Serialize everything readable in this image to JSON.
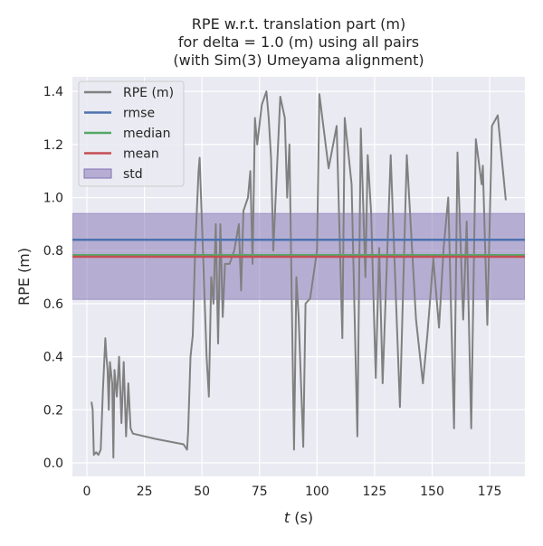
{
  "chart_data": {
    "type": "line",
    "title": [
      "RPE w.r.t. translation part (m)",
      "for delta = 1.0 (m) using all pairs",
      "(with Sim(3) Umeyama alignment)"
    ],
    "xlabel_var": "t",
    "xlabel_unit": " (s)",
    "ylabel": "RPE (m)",
    "xlim": [
      -6.3,
      190.3
    ],
    "ylim": [
      -0.051,
      1.455
    ],
    "xticks": [
      0,
      25,
      50,
      75,
      100,
      125,
      150,
      175
    ],
    "yticks": [
      0.0,
      0.2,
      0.4,
      0.6,
      0.8,
      1.0,
      1.2,
      1.4
    ],
    "grid": true,
    "legend_position": "top-left",
    "legend": [
      "RPE (m)",
      "rmse",
      "median",
      "mean",
      "std"
    ],
    "colors": {
      "rpe": "#808080",
      "rmse": "#4c72b0",
      "median": "#55a868",
      "mean": "#c44e52",
      "std": "#8172b2",
      "background": "#eaeaf2"
    },
    "stats": {
      "rmse": 0.841,
      "median": 0.783,
      "mean": 0.777,
      "std_low": 0.616,
      "std_high": 0.94
    },
    "series": [
      {
        "name": "RPE (m)",
        "x": [
          2,
          2.5,
          3,
          4,
          5,
          6,
          7,
          8,
          8.5,
          9,
          9.5,
          10,
          11,
          11.5,
          12,
          13,
          14,
          15,
          16,
          17,
          18,
          19,
          20,
          30,
          42,
          43.5,
          44,
          45,
          46,
          47,
          48.5,
          49,
          50,
          52,
          53,
          54,
          55,
          56,
          57,
          58,
          59,
          60,
          62,
          64,
          66,
          67,
          68,
          70,
          71,
          72,
          73,
          74,
          76,
          78,
          79,
          80,
          81,
          82,
          84,
          86,
          87,
          88,
          90,
          91,
          92,
          94,
          95,
          97,
          100,
          101,
          105,
          108.5,
          111,
          112,
          115,
          117.5,
          119,
          121,
          122,
          123.5,
          125.5,
          127,
          128.5,
          132,
          136,
          139,
          143,
          146,
          148,
          150.5,
          153,
          155,
          157,
          159.5,
          161,
          163.5,
          165,
          167,
          169,
          171.5,
          172,
          174,
          176,
          178.5,
          180,
          182
        ],
        "y": [
          0.23,
          0.2,
          0.03,
          0.04,
          0.03,
          0.05,
          0.28,
          0.47,
          0.4,
          0.35,
          0.2,
          0.38,
          0.3,
          0.02,
          0.35,
          0.25,
          0.4,
          0.15,
          0.38,
          0.1,
          0.3,
          0.13,
          0.11,
          0.09,
          0.07,
          0.05,
          0.12,
          0.4,
          0.48,
          0.8,
          1.1,
          1.15,
          0.9,
          0.4,
          0.25,
          0.7,
          0.6,
          0.9,
          0.45,
          0.9,
          0.55,
          0.75,
          0.75,
          0.8,
          0.9,
          0.65,
          0.95,
          1.0,
          1.1,
          0.75,
          1.3,
          1.2,
          1.35,
          1.4,
          1.3,
          1.15,
          0.8,
          1.0,
          1.38,
          1.3,
          1.0,
          1.2,
          0.05,
          0.7,
          0.55,
          0.06,
          0.6,
          0.62,
          0.8,
          1.39,
          1.11,
          1.27,
          0.47,
          1.3,
          1.05,
          0.1,
          1.26,
          0.7,
          1.16,
          0.94,
          0.32,
          0.81,
          0.3,
          1.16,
          0.21,
          1.16,
          0.54,
          0.3,
          0.49,
          0.77,
          0.51,
          0.81,
          1.0,
          0.13,
          1.17,
          0.54,
          0.91,
          0.13,
          1.22,
          1.05,
          1.12,
          0.52,
          1.27,
          1.31,
          1.17,
          0.99
        ]
      }
    ]
  }
}
